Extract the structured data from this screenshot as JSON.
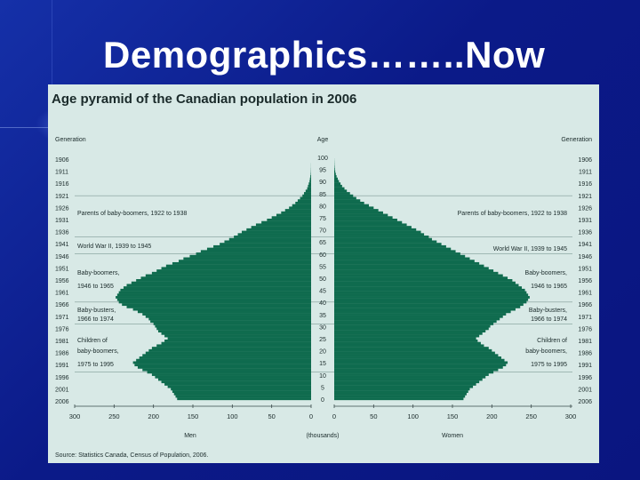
{
  "slide": {
    "title": "Demographics……..Now"
  },
  "colors": {
    "background": "#0c1d86",
    "panel": "#d8e9e6",
    "bars": "#0f6b4e",
    "title_text": "#ffffff"
  },
  "chart_data": {
    "type": "bar",
    "orientation": "horizontal-pyramid",
    "title": "Age pyramid of the Canadian population in 2006",
    "left_header": "Generation",
    "right_header": "Generation",
    "center_header": "Age",
    "xlabel_left": "Men",
    "xlabel_center": "(thousands)",
    "xlabel_right": "Women",
    "source": "Source: Statistics Canada, Census of Population, 2006.",
    "xlim": [
      0,
      300
    ],
    "x_ticks_left": [
      "300",
      "250",
      "200",
      "150",
      "100",
      "50",
      "0"
    ],
    "x_ticks_right": [
      "0",
      "50",
      "100",
      "150",
      "200",
      "250",
      "300"
    ],
    "age_ticks": [
      "100",
      "95",
      "90",
      "85",
      "80",
      "75",
      "70",
      "65",
      "60",
      "55",
      "50",
      "45",
      "40",
      "35",
      "30",
      "25",
      "20",
      "15",
      "10",
      "5",
      "0"
    ],
    "generation_years": [
      "1906",
      "1911",
      "1916",
      "1921",
      "1926",
      "1931",
      "1936",
      "1941",
      "1946",
      "1951",
      "1956",
      "1961",
      "1966",
      "1971",
      "1976",
      "1981",
      "1986",
      "1991",
      "1996",
      "2001",
      "2006"
    ],
    "ages": [
      0,
      1,
      2,
      3,
      4,
      5,
      6,
      7,
      8,
      9,
      10,
      11,
      12,
      13,
      14,
      15,
      16,
      17,
      18,
      19,
      20,
      21,
      22,
      23,
      24,
      25,
      26,
      27,
      28,
      29,
      30,
      31,
      32,
      33,
      34,
      35,
      36,
      37,
      38,
      39,
      40,
      41,
      42,
      43,
      44,
      45,
      46,
      47,
      48,
      49,
      50,
      51,
      52,
      53,
      54,
      55,
      56,
      57,
      58,
      59,
      60,
      61,
      62,
      63,
      64,
      65,
      66,
      67,
      68,
      69,
      70,
      71,
      72,
      73,
      74,
      75,
      76,
      77,
      78,
      79,
      80,
      81,
      82,
      83,
      84,
      85,
      86,
      87,
      88,
      89,
      90,
      91,
      92,
      93,
      94,
      95,
      96,
      97,
      98,
      99,
      100
    ],
    "series": [
      {
        "name": "Men",
        "values": [
          170,
          172,
          174,
          176,
          178,
          182,
          186,
          190,
          194,
          198,
          202,
          208,
          214,
          220,
          224,
          226,
          222,
          218,
          214,
          210,
          206,
          202,
          196,
          190,
          186,
          182,
          186,
          190,
          194,
          196,
          198,
          200,
          204,
          206,
          210,
          214,
          220,
          226,
          234,
          240,
          244,
          246,
          248,
          246,
          244,
          242,
          238,
          234,
          228,
          222,
          216,
          210,
          202,
          196,
          190,
          184,
          176,
          168,
          162,
          154,
          146,
          140,
          132,
          124,
          116,
          110,
          104,
          98,
          93,
          88,
          82,
          76,
          70,
          63,
          56,
          50,
          44,
          38,
          33,
          28,
          24,
          20,
          17,
          14,
          11,
          9,
          7,
          5,
          4,
          3,
          2,
          1.5,
          1,
          0.5,
          0.3,
          0.2,
          0.1,
          0.1,
          0,
          0,
          0
        ]
      },
      {
        "name": "Women",
        "values": [
          164,
          166,
          168,
          170,
          172,
          176,
          180,
          184,
          188,
          192,
          196,
          202,
          208,
          214,
          218,
          220,
          216,
          212,
          208,
          204,
          200,
          196,
          190,
          186,
          182,
          180,
          184,
          188,
          192,
          196,
          198,
          202,
          206,
          210,
          214,
          218,
          224,
          230,
          236,
          240,
          244,
          246,
          248,
          246,
          244,
          242,
          238,
          234,
          230,
          226,
          220,
          214,
          208,
          202,
          196,
          190,
          184,
          178,
          172,
          166,
          160,
          154,
          148,
          142,
          136,
          130,
          124,
          120,
          114,
          110,
          104,
          98,
          92,
          86,
          80,
          74,
          68,
          62,
          56,
          50,
          44,
          38,
          33,
          28,
          24,
          20,
          16,
          13,
          10,
          8,
          6,
          4.5,
          3,
          2,
          1.3,
          0.8,
          0.5,
          0.3,
          0.2,
          0.1,
          0
        ]
      }
    ],
    "annotations": [
      {
        "text": "Parents of baby-boomers, 1922 to 1938",
        "side": "both",
        "ages": [
          68,
          84
        ]
      },
      {
        "text": "World War II, 1939 to 1945",
        "side": "both",
        "ages": [
          61,
          67
        ]
      },
      {
        "text": "Baby-boomers, 1946 to 1965",
        "side": "both",
        "ages": [
          41,
          60
        ]
      },
      {
        "text": "Baby-busters, 1966 to 1974",
        "side": "both",
        "ages": [
          32,
          40
        ]
      },
      {
        "text": "Children of baby-boomers, 1975 to 1995",
        "side": "both",
        "ages": [
          11,
          31
        ]
      }
    ],
    "annotation_labels": {
      "left_parents": "Parents of baby-boomers, 1922 to 1938",
      "right_parents": "Parents of baby-boomers, 1922 to 1938",
      "left_ww2": "World War II, 1939 to 1945",
      "right_ww2": "World War II, 1939 to 1945",
      "left_boomers_1": "Baby-boomers,",
      "left_boomers_2": "1946 to 1965",
      "right_boomers_1": "Baby-boomers,",
      "right_boomers_2": "1946 to 1965",
      "left_busters_1": "Baby-busters,",
      "left_busters_2": "1966 to 1974",
      "right_busters_1": "Baby-busters,",
      "right_busters_2": "1966 to 1974",
      "left_children_1": "Children of",
      "left_children_2": "baby-boomers,",
      "left_children_3": "1975 to 1995",
      "right_children_1": "Children of",
      "right_children_2": "baby-boomers,",
      "right_children_3": "1975 to 1995"
    }
  }
}
